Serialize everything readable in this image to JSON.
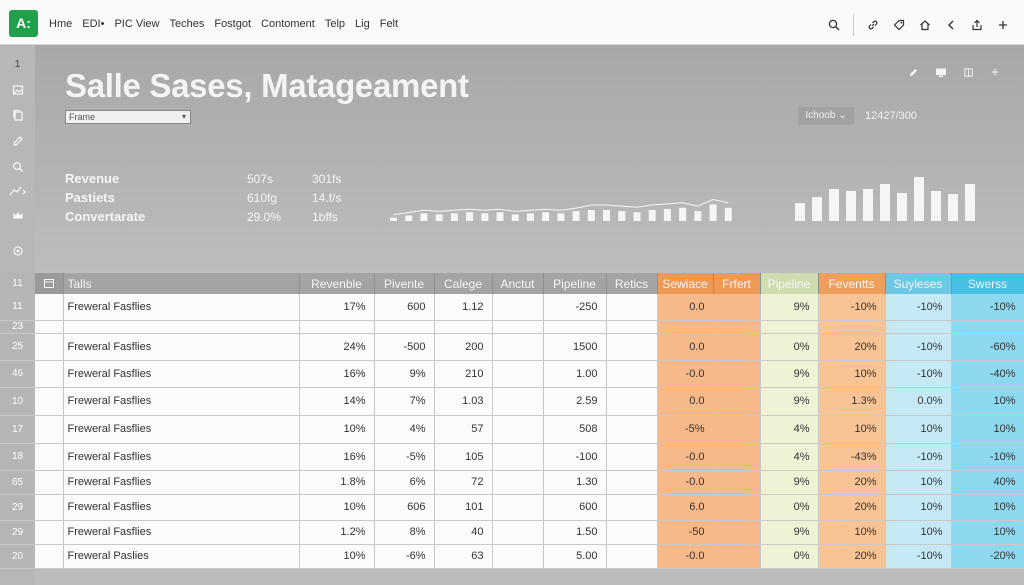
{
  "app": {
    "logo": "A:"
  },
  "menu": [
    "Hme",
    "EDI•",
    "PIC View",
    "Teches",
    "Fostgot",
    "Contoment",
    "Telp",
    "Lig",
    "Felt"
  ],
  "dashboard": {
    "title": "Salle Sases, Matageament",
    "frame_select": "Frame",
    "choob": "Ichoob",
    "counter": "12427/300",
    "kpis": [
      {
        "label": "Revenue",
        "v1": "507s",
        "v2": "301fs"
      },
      {
        "label": "Pastiets",
        "v1": "610fg",
        "v2": "14.f/s"
      },
      {
        "label": "Convertarate",
        "v1": "29.0%",
        "v2": "1bffs"
      }
    ]
  },
  "left_rail": {
    "top_numbers": [
      "1"
    ],
    "icons": [
      "image-icon",
      "copy-icon",
      "edit-icon",
      "search-icon",
      "chart-icon",
      "crown-icon",
      "settings-icon"
    ]
  },
  "table": {
    "headers": [
      "Talls",
      "Revenble",
      "Pivente",
      "Calege",
      "Anctut",
      "Pipeline",
      "Retics",
      "Sewiace",
      "Frfert",
      "Pipeline",
      "Feventts",
      "Suyleses",
      "Swerss"
    ],
    "header_row_number": "11",
    "rows": [
      {
        "num": "11",
        "name": "Freweral Fasflies",
        "c": [
          "17%",
          "600",
          "1.12",
          "",
          "-250",
          "",
          "0.0",
          "",
          "9%",
          "-10%",
          "-10%",
          "-10%"
        ]
      },
      {
        "num": "23",
        "name": "",
        "c": [
          "",
          "",
          "",
          "",
          "",
          "",
          "",
          "",
          "",
          "",
          "",
          ""
        ]
      },
      {
        "num": "25",
        "name": "Freweral Fasflies",
        "c": [
          "24%",
          "-500",
          "200",
          "",
          "1500",
          "",
          "0.0",
          "",
          "0%",
          "20%",
          "-10%",
          "-60%"
        ]
      },
      {
        "num": "46",
        "name": "Freweral Fasflies",
        "c": [
          "16%",
          "9%",
          "210",
          "",
          "1.00",
          "",
          "-0.0",
          "",
          "9%",
          "10%",
          "-10%",
          "-40%"
        ]
      },
      {
        "num": "10",
        "name": "Freweral Fasflies",
        "c": [
          "14%",
          "7%",
          "1.03",
          "",
          "2.59",
          "",
          "0.0",
          "",
          "9%",
          "1.3%",
          "0.0%",
          "10%"
        ]
      },
      {
        "num": "17",
        "name": "Freweral Fasflies",
        "c": [
          "10%",
          "4%",
          "57",
          "",
          "508",
          "",
          "-5%",
          "",
          "4%",
          "10%",
          "10%",
          "10%"
        ]
      },
      {
        "num": "18",
        "name": "Freweral Fasflies",
        "c": [
          "16%",
          "-5%",
          "105",
          "",
          "-100",
          "",
          "-0.0",
          "",
          "4%",
          "-43%",
          "-10%",
          "-10%"
        ]
      },
      {
        "num": "65",
        "name": "Freweral Fasflies",
        "c": [
          "1.8%",
          "6%",
          "72",
          "",
          "1.30",
          "",
          "-0.0",
          "",
          "9%",
          "20%",
          "10%",
          "40%"
        ]
      },
      {
        "num": "29",
        "name": "Freweral Fasflies",
        "c": [
          "10%",
          "606",
          "101",
          "",
          "600",
          "",
          "6.0",
          "",
          "0%",
          "20%",
          "10%",
          "10%"
        ]
      },
      {
        "num": "29",
        "name": "Freweral Fasflies",
        "c": [
          "1.2%",
          "8%",
          "40",
          "",
          "1.50",
          "",
          "-50",
          "",
          "9%",
          "10%",
          "10%",
          "10%"
        ]
      },
      {
        "num": "20",
        "name": "Freweral Paslies",
        "c": [
          "10%",
          "-6%",
          "63",
          "",
          "5.00",
          "",
          "-0.0",
          "",
          "0%",
          "20%",
          "-10%",
          "-20%"
        ]
      }
    ]
  },
  "spark_bars": [
    3,
    5,
    7,
    6,
    7,
    8,
    7,
    8,
    6,
    7,
    8,
    7,
    9,
    10,
    10,
    9,
    8,
    10,
    11,
    12,
    9,
    15,
    12
  ],
  "mini_bars": [
    18,
    24,
    32,
    30,
    32,
    37,
    28,
    44,
    30,
    27,
    37
  ],
  "colors": {
    "orange": "#f7b98a",
    "lgreen": "#eef3d6",
    "peach": "#f9c495",
    "lblue": "#c6eaf5",
    "blue": "#8cd8ef",
    "brand": "#21a04a"
  }
}
